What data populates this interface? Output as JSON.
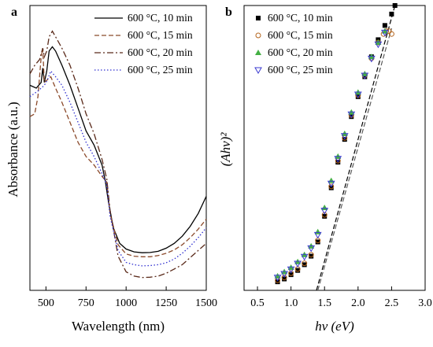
{
  "panels": [
    {
      "letter": "a",
      "chart_data": {
        "type": "line",
        "title": "",
        "xlabel": "Wavelength (nm)",
        "ylabel": "Absorbance (a.u.)",
        "xlim": [
          400,
          1500
        ],
        "ylim": [
          0,
          1
        ],
        "xticks": [
          500,
          750,
          1000,
          1250,
          1500
        ],
        "yticks": [],
        "grid": false,
        "legend_position": "top-right",
        "series": [
          {
            "name": "600 °C, 10 min",
            "dash": "solid",
            "color": "#000000",
            "x": [
              400,
              440,
              470,
              480,
              490,
              505,
              520,
              540,
              560,
              600,
              650,
              700,
              750,
              800,
              850,
              870,
              890,
              920,
              960,
              1000,
              1050,
              1100,
              1150,
              1200,
              1250,
              1300,
              1350,
              1400,
              1450,
              1500
            ],
            "y": [
              0.72,
              0.71,
              0.73,
              0.78,
              0.73,
              0.77,
              0.84,
              0.855,
              0.84,
              0.79,
              0.72,
              0.64,
              0.56,
              0.51,
              0.44,
              0.385,
              0.31,
              0.22,
              0.165,
              0.145,
              0.135,
              0.132,
              0.133,
              0.137,
              0.148,
              0.165,
              0.19,
              0.225,
              0.27,
              0.33
            ]
          },
          {
            "name": "600 °C, 15 min",
            "dash": "dashed",
            "color": "#8b4a2b",
            "x": [
              400,
              430,
              450,
              470,
              480,
              490,
              510,
              530,
              560,
              600,
              650,
              700,
              750,
              800,
              850,
              880,
              900,
              950,
              1000,
              1050,
              1100,
              1150,
              1200,
              1250,
              1300,
              1350,
              1400,
              1450,
              1500
            ],
            "y": [
              0.61,
              0.62,
              0.68,
              0.82,
              0.85,
              0.73,
              0.74,
              0.75,
              0.71,
              0.66,
              0.59,
              0.52,
              0.47,
              0.44,
              0.4,
              0.38,
              0.27,
              0.16,
              0.128,
              0.12,
              0.118,
              0.118,
              0.122,
              0.13,
              0.142,
              0.16,
              0.185,
              0.215,
              0.25
            ]
          },
          {
            "name": "600 °C, 20 min",
            "dash": "dashdot",
            "color": "#5a2a1a",
            "x": [
              400,
              430,
              460,
              480,
              490,
              505,
              520,
              540,
              560,
              600,
              650,
              700,
              750,
              800,
              850,
              880,
              900,
              950,
              1000,
              1050,
              1100,
              1150,
              1200,
              1250,
              1300,
              1350,
              1400,
              1450,
              1500
            ],
            "y": [
              0.76,
              0.79,
              0.81,
              0.85,
              0.82,
              0.84,
              0.89,
              0.91,
              0.89,
              0.85,
              0.79,
              0.71,
              0.62,
              0.55,
              0.46,
              0.39,
              0.28,
              0.12,
              0.065,
              0.05,
              0.045,
              0.046,
              0.05,
              0.06,
              0.075,
              0.09,
              0.115,
              0.14,
              0.165
            ]
          },
          {
            "name": "600 °C, 25 min",
            "dash": "dotted",
            "color": "#3030d0",
            "x": [
              400,
              450,
              490,
              510,
              530,
              560,
              600,
              650,
              700,
              750,
              800,
              850,
              880,
              900,
              950,
              1000,
              1050,
              1100,
              1150,
              1200,
              1250,
              1300,
              1350,
              1400,
              1450,
              1500
            ],
            "y": [
              0.68,
              0.7,
              0.72,
              0.74,
              0.77,
              0.75,
              0.72,
              0.66,
              0.59,
              0.52,
              0.47,
              0.41,
              0.37,
              0.26,
              0.14,
              0.098,
              0.09,
              0.086,
              0.087,
              0.09,
              0.097,
              0.11,
              0.13,
              0.155,
              0.185,
              0.22
            ]
          }
        ]
      }
    },
    {
      "letter": "b",
      "chart_data": {
        "type": "scatter",
        "title": "",
        "xlabel": "hv (eV)",
        "ylabel": "(Ahv)²",
        "xlim": [
          0.3,
          3.0
        ],
        "ylim": [
          0,
          1
        ],
        "xticks": [
          "0.5",
          "1.0",
          "1.5",
          "2.0",
          "2.5",
          "3.0"
        ],
        "yticks": [],
        "grid": false,
        "legend_position": "top-left",
        "series": [
          {
            "name": "600 °C, 10 min",
            "marker": "filled-square",
            "color": "#000000",
            "x": [
              0.8,
              0.9,
              1.0,
              1.1,
              1.2,
              1.3,
              1.4,
              1.5,
              1.6,
              1.7,
              1.8,
              1.9,
              2.0,
              2.1,
              2.2,
              2.3,
              2.4,
              2.5,
              2.55
            ],
            "y": [
              0.03,
              0.04,
              0.055,
              0.07,
              0.09,
              0.12,
              0.17,
              0.26,
              0.36,
              0.45,
              0.53,
              0.61,
              0.68,
              0.75,
              0.82,
              0.88,
              0.93,
              0.97,
              1.0
            ]
          },
          {
            "name": "600 °C, 15 min",
            "marker": "open-circle",
            "color": "#b5651d",
            "x": [
              0.8,
              0.9,
              1.0,
              1.1,
              1.2,
              1.3,
              1.4,
              1.5,
              1.6,
              1.7,
              1.8,
              1.9,
              2.0,
              2.1,
              2.2,
              2.3,
              2.38,
              2.42,
              2.46,
              2.5
            ],
            "y": [
              0.035,
              0.045,
              0.06,
              0.075,
              0.095,
              0.125,
              0.175,
              0.265,
              0.365,
              0.455,
              0.535,
              0.615,
              0.685,
              0.755,
              0.815,
              0.87,
              0.9,
              0.91,
              0.91,
              0.9
            ]
          },
          {
            "name": "600 °C, 20 min",
            "marker": "filled-triangle-up",
            "color": "#44b044",
            "x": [
              0.8,
              0.9,
              1.0,
              1.1,
              1.2,
              1.3,
              1.4,
              1.5,
              1.6,
              1.7,
              1.8,
              1.9,
              2.0,
              2.1,
              2.2,
              2.3,
              2.4
            ],
            "y": [
              0.05,
              0.065,
              0.08,
              0.1,
              0.125,
              0.155,
              0.205,
              0.29,
              0.385,
              0.47,
              0.55,
              0.625,
              0.695,
              0.76,
              0.82,
              0.87,
              0.91
            ]
          },
          {
            "name": "600 °C, 25 min",
            "marker": "open-triangle-down",
            "color": "#3a3ad0",
            "x": [
              0.8,
              0.9,
              1.0,
              1.1,
              1.2,
              1.3,
              1.4,
              1.5,
              1.6,
              1.7,
              1.8,
              1.9,
              2.0,
              2.1,
              2.2,
              2.3,
              2.4
            ],
            "y": [
              0.045,
              0.058,
              0.074,
              0.094,
              0.118,
              0.148,
              0.195,
              0.28,
              0.375,
              0.462,
              0.542,
              0.618,
              0.688,
              0.754,
              0.814,
              0.864,
              0.905
            ]
          }
        ],
        "fit_lines": [
          {
            "x": [
              1.38,
              2.55
            ],
            "y": [
              0.0,
              1.0
            ],
            "color": "#000000",
            "dash": "dashed"
          },
          {
            "x": [
              1.4,
              2.5
            ],
            "y": [
              0.0,
              0.92
            ],
            "color": "#5a5a5a",
            "dash": "dashed"
          }
        ]
      }
    }
  ]
}
